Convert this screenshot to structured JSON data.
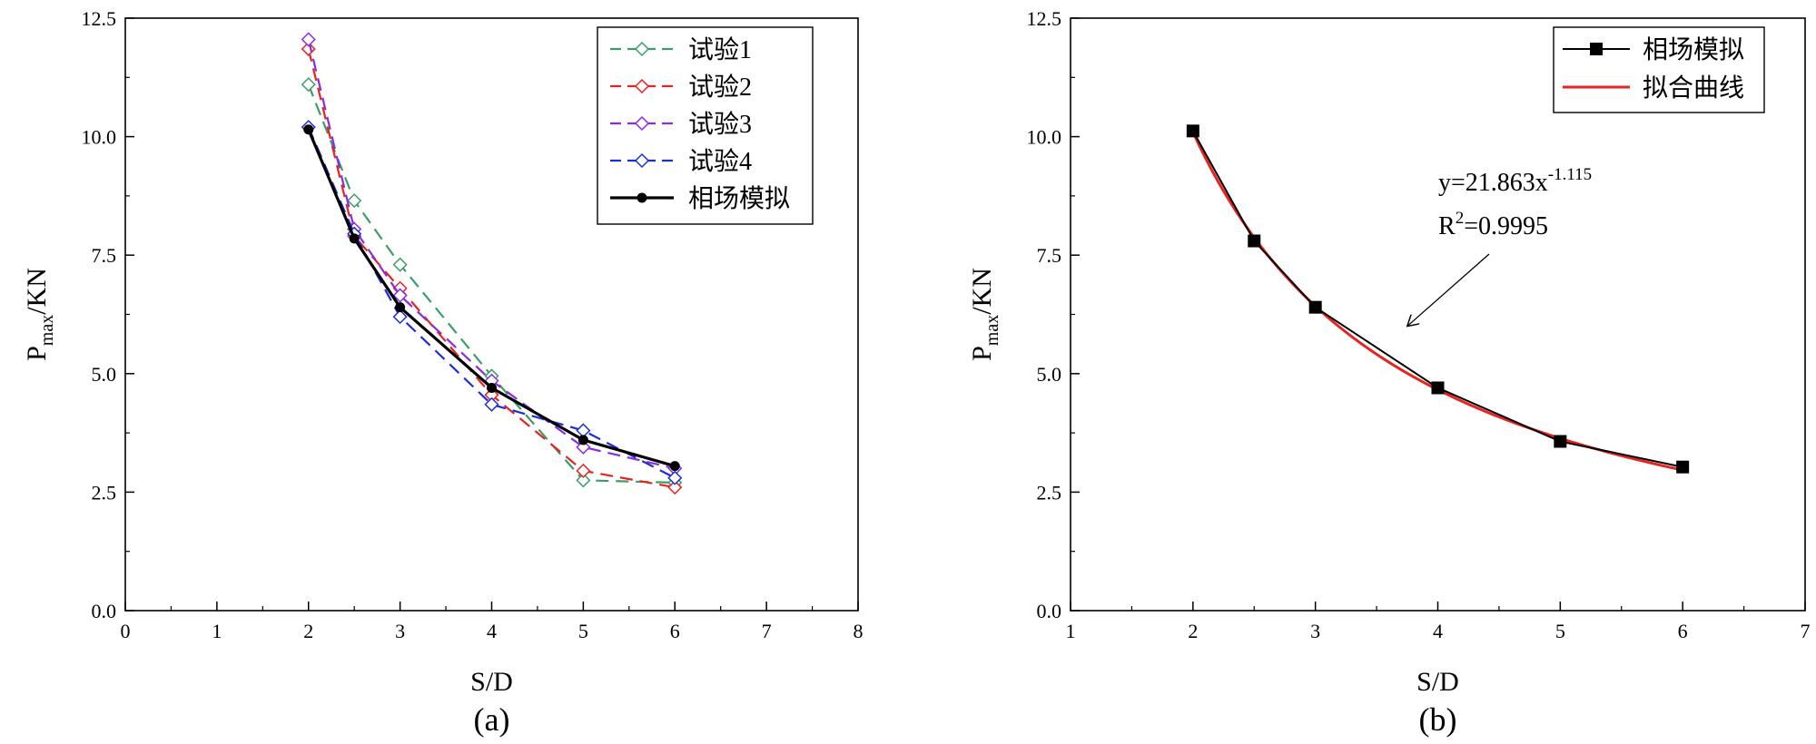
{
  "chart_data": [
    {
      "type": "line",
      "panel_label": "(a)",
      "xlabel": "S/D",
      "ylabel_main": "P",
      "ylabel_sub": "max",
      "ylabel_rest": "/KN",
      "xlim": [
        0,
        8
      ],
      "ylim": [
        0,
        12.5
      ],
      "xticks": [
        "0",
        "1",
        "2",
        "3",
        "4",
        "5",
        "6",
        "7",
        "8"
      ],
      "yticks": [
        "0.0",
        "2.5",
        "5.0",
        "7.5",
        "10.0",
        "12.5"
      ],
      "grid": false,
      "legend_position": "top-right",
      "series": [
        {
          "name": "试验1",
          "color": "#3a9d6a",
          "dash": true,
          "marker": "diamond",
          "x": [
            2,
            2.5,
            3,
            4,
            5,
            6
          ],
          "y": [
            11.1,
            8.65,
            7.3,
            4.95,
            2.75,
            2.7
          ]
        },
        {
          "name": "试验2",
          "color": "#e8231f",
          "dash": true,
          "marker": "diamond",
          "x": [
            2,
            2.5,
            3,
            4,
            5,
            6
          ],
          "y": [
            11.85,
            7.9,
            6.8,
            4.55,
            2.95,
            2.6
          ]
        },
        {
          "name": "试验3",
          "color": "#8b2be2",
          "dash": true,
          "marker": "diamond",
          "x": [
            2,
            2.5,
            3,
            4,
            5,
            6
          ],
          "y": [
            12.05,
            8.05,
            6.65,
            4.85,
            3.45,
            3.0
          ]
        },
        {
          "name": "试验4",
          "color": "#1a2fd6",
          "dash": true,
          "marker": "diamond",
          "x": [
            2,
            2.5,
            3,
            4,
            5,
            6
          ],
          "y": [
            10.2,
            7.95,
            6.2,
            4.35,
            3.8,
            2.8
          ]
        },
        {
          "name": "相场模拟",
          "color": "#000000",
          "dash": false,
          "marker": "circle",
          "x": [
            2,
            2.5,
            3,
            4,
            5,
            6
          ],
          "y": [
            10.15,
            7.85,
            6.4,
            4.7,
            3.6,
            3.05
          ]
        }
      ]
    },
    {
      "type": "line",
      "panel_label": "(b)",
      "xlabel": "S/D",
      "ylabel_main": "P",
      "ylabel_sub": "max",
      "ylabel_rest": "/KN",
      "xlim": [
        1,
        7
      ],
      "ylim": [
        0,
        12.5
      ],
      "xticks": [
        "1",
        "2",
        "3",
        "4",
        "5",
        "6",
        "7"
      ],
      "yticks": [
        "0.0",
        "2.5",
        "5.0",
        "7.5",
        "10.0",
        "12.5"
      ],
      "grid": false,
      "legend_position": "top-right",
      "series": [
        {
          "name": "相场模拟",
          "color": "#000000",
          "marker": "square",
          "x": [
            2,
            2.5,
            3,
            4,
            5,
            6
          ],
          "y": [
            10.12,
            7.8,
            6.4,
            4.7,
            3.57,
            3.03
          ]
        },
        {
          "name": "拟合曲线",
          "color": "#e8231f",
          "marker": "none",
          "fit": {
            "a": 21.863,
            "b": -1.115
          }
        }
      ],
      "annotation": {
        "eq_prefix": "y=21.863x",
        "eq_exponent": "-1.115",
        "r2_prefix": "R",
        "r2_exponent": "2",
        "r2_suffix": "=0.9995",
        "arrow_target": {
          "x": 3.75,
          "y": 6.0
        }
      }
    }
  ]
}
